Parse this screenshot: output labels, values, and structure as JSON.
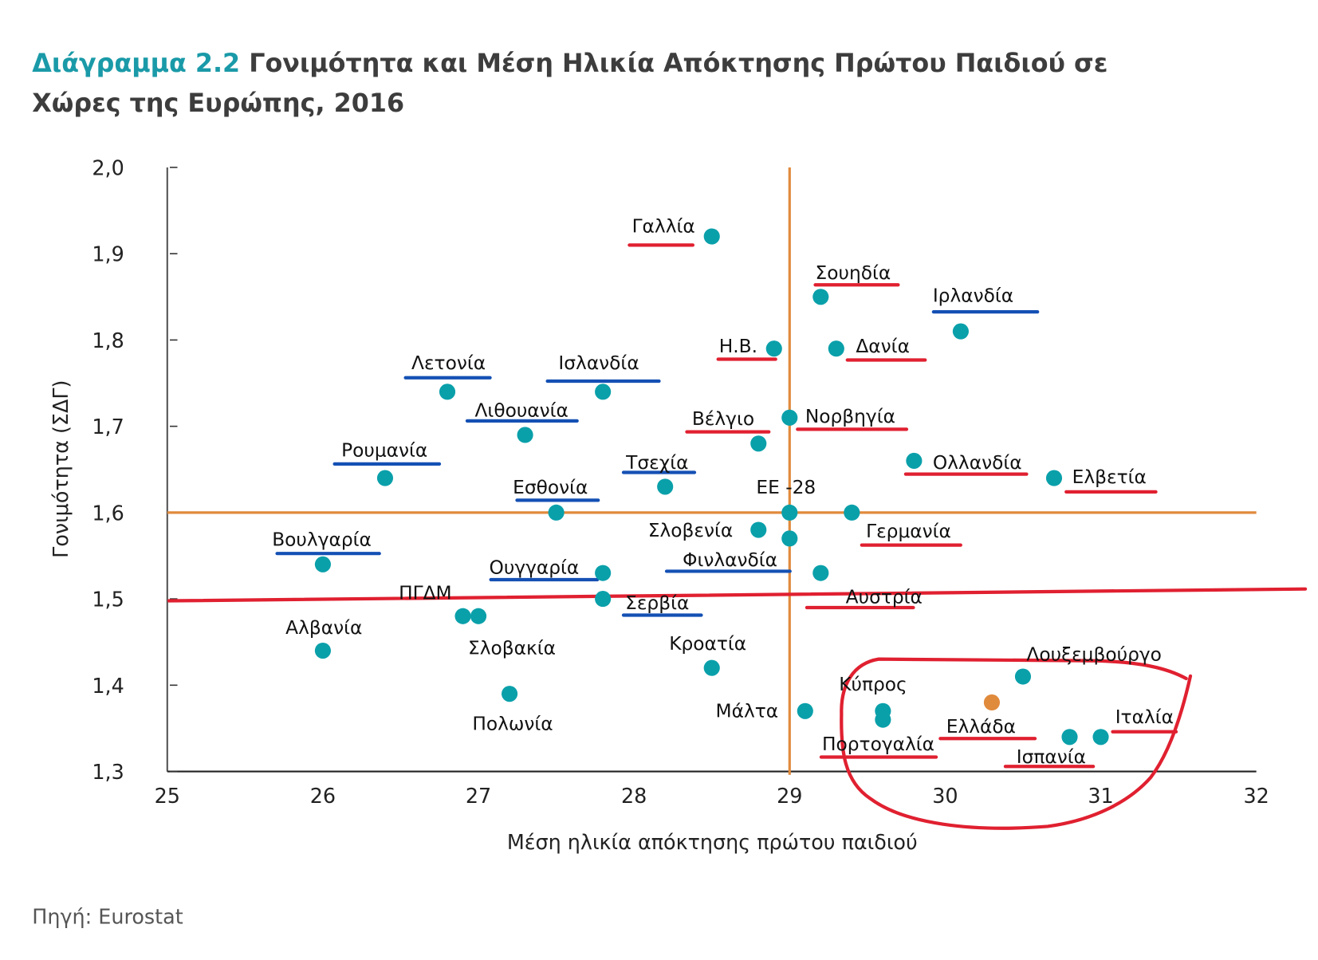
{
  "chart_data": {
    "type": "scatter",
    "title_prefix": "Διάγραμμα 2.2",
    "title_line1": "Γονιμότητα και Μέση Ηλικία Απόκτησης Πρώτου Παιδιού σε",
    "title_line2": "Χώρες της Ευρώπης, 2016",
    "xlabel": "Μέση ηλικία απόκτησης πρώτου παιδιού",
    "ylabel": "Γονιμότητα (ΣΔΓ)",
    "xlim": [
      25,
      32
    ],
    "ylim": [
      1.3,
      2.0
    ],
    "x_ticks": [
      "25",
      "26",
      "27",
      "28",
      "29",
      "30",
      "31",
      "32"
    ],
    "y_ticks": [
      "1,3",
      "1,4",
      "1,5",
      "1,6",
      "1,7",
      "1,8",
      "1,9",
      "2,0"
    ],
    "reference_lines": {
      "x": 29.0,
      "y": 1.6,
      "color": "#e08a3c"
    },
    "colors": {
      "point": "#0aa0aa",
      "highlight": "#e08a3c",
      "red_mark": "#e02030",
      "blue_mark": "#1450b4"
    },
    "points": [
      {
        "label": "Γαλλία",
        "x": 28.5,
        "y": 1.92,
        "underline": "red"
      },
      {
        "label": "Σουηδία",
        "x": 29.2,
        "y": 1.85,
        "underline": "red"
      },
      {
        "label": "Ιρλανδία",
        "x": 30.1,
        "y": 1.81,
        "underline": "blue"
      },
      {
        "label": "Η.Β.",
        "x": 28.9,
        "y": 1.79,
        "underline": "red"
      },
      {
        "label": "Δανία",
        "x": 29.3,
        "y": 1.79,
        "underline": "red"
      },
      {
        "label": "Λετονία",
        "x": 26.8,
        "y": 1.74,
        "underline": "blue"
      },
      {
        "label": "Ισλανδία",
        "x": 27.8,
        "y": 1.74,
        "underline": "blue"
      },
      {
        "label": "Λιθουανία",
        "x": 27.3,
        "y": 1.69,
        "underline": "blue"
      },
      {
        "label": "Βέλγιο",
        "x": 28.8,
        "y": 1.68,
        "underline": "red"
      },
      {
        "label": "Νορβηγία",
        "x": 29.0,
        "y": 1.71,
        "underline": "red"
      },
      {
        "label": "Ρουμανία",
        "x": 26.4,
        "y": 1.64,
        "underline": "blue"
      },
      {
        "label": "Τσεχία",
        "x": 28.2,
        "y": 1.63,
        "underline": "blue"
      },
      {
        "label": "Ολλανδία",
        "x": 29.8,
        "y": 1.66,
        "underline": "red"
      },
      {
        "label": "Ελβετία",
        "x": 30.7,
        "y": 1.64,
        "underline": "red"
      },
      {
        "label": "Εσθονία",
        "x": 27.5,
        "y": 1.6,
        "underline": "blue"
      },
      {
        "label": "ΕΕ -28",
        "x": 29.0,
        "y": 1.6,
        "underline": ""
      },
      {
        "label": "Σλοβενία",
        "x": 28.8,
        "y": 1.58,
        "underline": ""
      },
      {
        "label": "Γερμανία",
        "x": 29.4,
        "y": 1.6,
        "underline": "red"
      },
      {
        "label": "Βουλγαρία",
        "x": 26.0,
        "y": 1.54,
        "underline": "blue"
      },
      {
        "label": "Φινλανδία",
        "x": 29.0,
        "y": 1.57,
        "underline": "blue"
      },
      {
        "label": "Ουγγαρία",
        "x": 27.8,
        "y": 1.53,
        "underline": "blue"
      },
      {
        "label": "ΠΓΔΜ",
        "x": 26.9,
        "y": 1.48,
        "underline": ""
      },
      {
        "label": "Αυστρία",
        "x": 29.2,
        "y": 1.53,
        "underline": "red"
      },
      {
        "label": "Σερβία",
        "x": 27.8,
        "y": 1.5,
        "underline": "blue"
      },
      {
        "label": "Αλβανία",
        "x": 26.0,
        "y": 1.44,
        "underline": ""
      },
      {
        "label": "Σλοβακία",
        "x": 27.0,
        "y": 1.48,
        "underline": ""
      },
      {
        "label": "Κροατία",
        "x": 28.5,
        "y": 1.42,
        "underline": ""
      },
      {
        "label": "Πολωνία",
        "x": 27.2,
        "y": 1.39,
        "underline": ""
      },
      {
        "label": "Μάλτα",
        "x": 29.1,
        "y": 1.37,
        "underline": ""
      },
      {
        "label": "Κύπρος",
        "x": 29.6,
        "y": 1.37,
        "underline": ""
      },
      {
        "label": "Λουξεμβούργο",
        "x": 30.5,
        "y": 1.41,
        "underline": ""
      },
      {
        "label": "Ιταλία",
        "x": 31.0,
        "y": 1.34,
        "underline": "red"
      },
      {
        "label": "Ελλάδα",
        "x": 30.3,
        "y": 1.38,
        "underline": "red",
        "highlight": true
      },
      {
        "label": "Πορτογαλία",
        "x": 29.6,
        "y": 1.36,
        "underline": "red"
      },
      {
        "label": "Ισπανία",
        "x": 30.8,
        "y": 1.34,
        "underline": "red"
      }
    ],
    "source": "Πηγή: Eurostat"
  }
}
